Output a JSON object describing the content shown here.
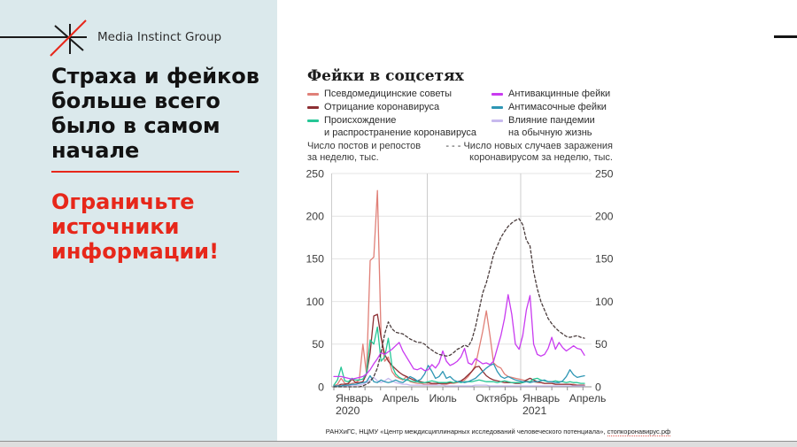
{
  "slide": {
    "brand": "Media Instinct Group",
    "title": "Страха и фейков\nбольше всего\nбыло в самом\nначале",
    "callout": "Ограничьте\nисточники\nинформации!",
    "colors": {
      "accent_red": "#e7271a",
      "sidebar_bg": "#dbe9ec"
    }
  },
  "chart": {
    "title": "Фейки в соцсетях",
    "left_axis_note": "Число постов и репостов\nза неделю, тыс.",
    "right_axis_note": "- - - Число новых случаев заражения\nкоронавирусом за неделю, тыс.",
    "source_text": "РАНХиГС, НЦМУ «Центр междисциплинарных исследований человеческого потенциала», ",
    "source_link": "стопкоронавирус.рф"
  },
  "chart_data": {
    "type": "line",
    "title": "Фейки в соцсетях",
    "ylabel_left": "Число постов и репостов за неделю, тыс.",
    "ylabel_right": "Число новых случаев заражения коронавирусом за неделю, тыс.",
    "ylim": [
      0,
      250
    ],
    "yticks": [
      0,
      50,
      100,
      150,
      200,
      250
    ],
    "grid": true,
    "legend_position": "top",
    "x_unit": "weekly points, Январь 2020 — Апрель 2021",
    "x_month_ticks": 17,
    "vertical_gridline_months": [
      6,
      12
    ],
    "x_tick_labels": [
      {
        "month": 0,
        "label": "Январь",
        "sub": "2020"
      },
      {
        "month": 3,
        "label": "Апрель"
      },
      {
        "month": 6,
        "label": "Июль"
      },
      {
        "month": 9,
        "label": "Октябрь"
      },
      {
        "month": 12,
        "label": "Январь",
        "sub": "2021"
      },
      {
        "month": 15,
        "label": "Апрель"
      }
    ],
    "series": [
      {
        "name": "Псевдомедицинские советы",
        "color": "#e08078",
        "dashed": false,
        "values": [
          1,
          3,
          10,
          4,
          3,
          4,
          5,
          8,
          50,
          15,
          148,
          152,
          230,
          60,
          30,
          35,
          18,
          12,
          10,
          8,
          12,
          6,
          5,
          4,
          4,
          3,
          3,
          3,
          3,
          4,
          3,
          3,
          4,
          4,
          5,
          6,
          8,
          12,
          18,
          25,
          45,
          65,
          89,
          60,
          28,
          24,
          22,
          15,
          12,
          11,
          10,
          9,
          8,
          7,
          6,
          6,
          5,
          5,
          4,
          4,
          4,
          3,
          3,
          3,
          3,
          3,
          3,
          2,
          2,
          2
        ]
      },
      {
        "name": "Отрицание коронавируса",
        "color": "#8d2f33",
        "dashed": false,
        "values": [
          1,
          1,
          3,
          3,
          4,
          9,
          5,
          5,
          6,
          15,
          40,
          83,
          85,
          58,
          38,
          30,
          25,
          21,
          17,
          14,
          12,
          10,
          8,
          7,
          6,
          5,
          5,
          4,
          4,
          4,
          4,
          4,
          5,
          5,
          6,
          7,
          10,
          14,
          18,
          23,
          24,
          18,
          13,
          10,
          8,
          7,
          6,
          5,
          5,
          5,
          4,
          4,
          5,
          8,
          10,
          8,
          6,
          5,
          4,
          4,
          4,
          3,
          3,
          3,
          3,
          3,
          2,
          2,
          2,
          2
        ]
      },
      {
        "name": "Происхождение\nи распространение коронавируса",
        "color": "#26c696",
        "dashed": false,
        "values": [
          2,
          8,
          23,
          7,
          6,
          10,
          8,
          8,
          9,
          16,
          55,
          50,
          70,
          30,
          35,
          57,
          25,
          15,
          11,
          9,
          8,
          7,
          6,
          6,
          5,
          5,
          6,
          7,
          6,
          5,
          5,
          5,
          6,
          5,
          6,
          5,
          6,
          6,
          6,
          7,
          8,
          7,
          6,
          6,
          6,
          5,
          6,
          7,
          6,
          5,
          5,
          5,
          5,
          6,
          6,
          9,
          10,
          8,
          7,
          6,
          6,
          7,
          6,
          6,
          5,
          6,
          5,
          5,
          4,
          4
        ]
      },
      {
        "name": "Антивакцинные фейки",
        "color": "#c93bf0",
        "dashed": false,
        "values": [
          12,
          12,
          12,
          11,
          10,
          9,
          10,
          11,
          12,
          15,
          20,
          27,
          33,
          40,
          38,
          41,
          44,
          48,
          52,
          42,
          35,
          28,
          21,
          20,
          22,
          19,
          20,
          26,
          22,
          28,
          42,
          30,
          25,
          27,
          30,
          35,
          45,
          28,
          26,
          33,
          30,
          27,
          28,
          26,
          30,
          45,
          60,
          80,
          108,
          85,
          50,
          44,
          60,
          90,
          107,
          50,
          38,
          36,
          38,
          45,
          58,
          44,
          52,
          46,
          42,
          45,
          48,
          45,
          44,
          37
        ]
      },
      {
        "name": "Антимасочные фейки",
        "color": "#2e96b4",
        "dashed": false,
        "values": [
          1,
          1,
          1,
          2,
          2,
          3,
          3,
          4,
          5,
          6,
          13,
          6,
          5,
          8,
          6,
          5,
          6,
          8,
          6,
          5,
          8,
          12,
          10,
          7,
          9,
          15,
          25,
          18,
          10,
          12,
          18,
          10,
          12,
          8,
          6,
          6,
          5,
          6,
          8,
          10,
          14,
          18,
          22,
          25,
          27,
          18,
          12,
          10,
          12,
          10,
          8,
          7,
          6,
          6,
          5,
          6,
          6,
          7,
          8,
          6,
          6,
          5,
          5,
          7,
          12,
          20,
          14,
          11,
          12,
          13
        ]
      },
      {
        "name": "Влияние пандемии\nна обычную жизнь",
        "color": "#c7b9ee",
        "dashed": false,
        "values": [
          1,
          1,
          1,
          1,
          1,
          2,
          2,
          2,
          3,
          5,
          8,
          11,
          7,
          5,
          7,
          10,
          7,
          5,
          4,
          3,
          3,
          2,
          2,
          2,
          2,
          2,
          2,
          2,
          2,
          2,
          2,
          1,
          1,
          1,
          1,
          1,
          1,
          1,
          1,
          2,
          2,
          2,
          2,
          1,
          1,
          1,
          1,
          1,
          1,
          1,
          1,
          1,
          1,
          1,
          1,
          1,
          1,
          1,
          1,
          1,
          1,
          1,
          1,
          1,
          1,
          1,
          1,
          1,
          1,
          1
        ]
      },
      {
        "name": "Число новых случаев заражения коронавирусом за неделю, тыс.",
        "color": "#4a3c3c",
        "dashed": true,
        "values": [
          0,
          0,
          0,
          0,
          0,
          0,
          0,
          0,
          1,
          3,
          6,
          12,
          22,
          40,
          62,
          76,
          68,
          64,
          63,
          62,
          59,
          56,
          54,
          52,
          52,
          50,
          46,
          43,
          40,
          38,
          37,
          36,
          37,
          40,
          44,
          46,
          49,
          47,
          55,
          70,
          90,
          110,
          122,
          138,
          155,
          165,
          175,
          182,
          188,
          192,
          195,
          197,
          190,
          172,
          165,
          135,
          115,
          100,
          90,
          80,
          74,
          69,
          65,
          62,
          59,
          58,
          59,
          60,
          58,
          57
        ]
      }
    ]
  }
}
